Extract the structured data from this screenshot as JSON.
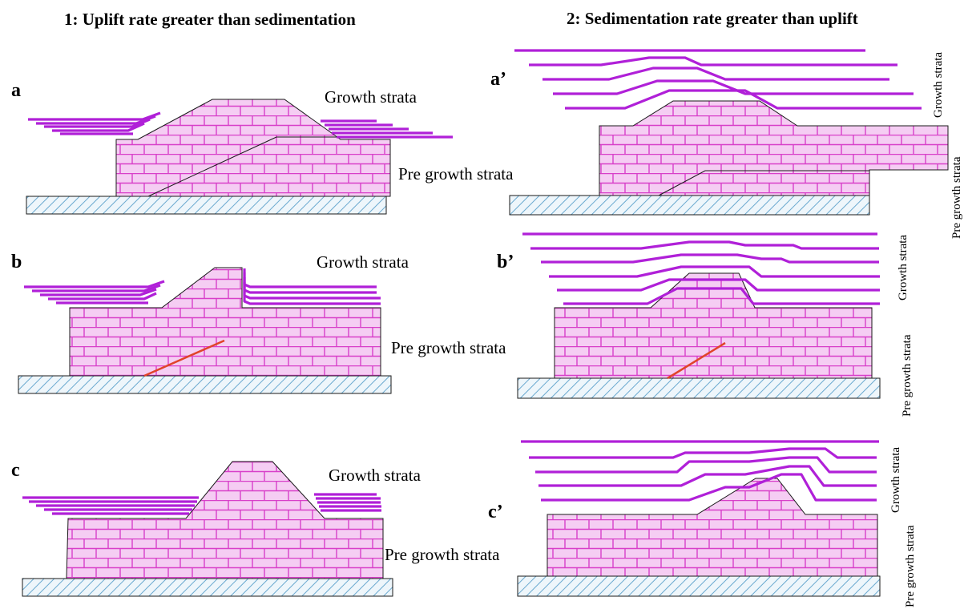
{
  "headers": {
    "left": "1: Uplift rate greater than sedimentation",
    "right": "2: Sedimentation rate greater than uplift"
  },
  "panels": {
    "a": "a",
    "a_prime": "a’",
    "b": "b",
    "b_prime": "b’",
    "c": "c",
    "c_prime": "c’"
  },
  "labels": {
    "growth_strata": "Growth strata",
    "pre_growth_strata": "Pre growth strata"
  },
  "colors": {
    "strata": "#b020d8",
    "brick_fill": "#f5cdf3",
    "brick_line": "#d83fc9",
    "fault": "#e0442a",
    "basement_hatch": "#6aa9cf"
  }
}
